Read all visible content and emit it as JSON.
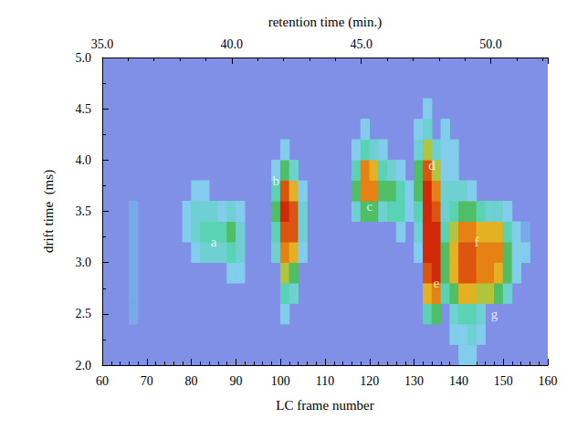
{
  "chart_data": {
    "type": "heatmap",
    "x_label": "LC frame number",
    "y_label": "drift time  (ms)",
    "x2_label": "retention time (min.)",
    "xlim": [
      60,
      160
    ],
    "xticks": [
      60,
      70,
      80,
      90,
      100,
      110,
      120,
      130,
      140,
      150,
      160
    ],
    "ylim": [
      2.0,
      5.0
    ],
    "yticks": [
      {
        "value": 2.0,
        "label": "2.0"
      },
      {
        "value": 2.5,
        "label": "2.5"
      },
      {
        "value": 3.0,
        "label": "3.0"
      },
      {
        "value": 3.5,
        "label": "3.5"
      },
      {
        "value": 4.0,
        "label": "4.0"
      },
      {
        "value": 4.5,
        "label": "4.5"
      },
      {
        "value": 5.0,
        "label": "5.0"
      }
    ],
    "x2lim": [
      35,
      52.2
    ],
    "x2ticks": [
      {
        "value": 35,
        "label": "35.0"
      },
      {
        "value": 40,
        "label": "40.0"
      },
      {
        "value": 45,
        "label": "45.0"
      },
      {
        "value": 50,
        "label": "50.0"
      }
    ],
    "zlim": [
      0,
      10
    ],
    "cell_size": [
      2,
      0.2
    ],
    "cells": [
      [
        67,
        2.5,
        1
      ],
      [
        67,
        2.7,
        1
      ],
      [
        67,
        2.9,
        1
      ],
      [
        67,
        3.1,
        1
      ],
      [
        67,
        3.3,
        1
      ],
      [
        67,
        3.5,
        1
      ],
      [
        79,
        3.3,
        2
      ],
      [
        79,
        3.5,
        2
      ],
      [
        81,
        3.1,
        2
      ],
      [
        81,
        3.3,
        3
      ],
      [
        81,
        3.5,
        3
      ],
      [
        81,
        3.7,
        2
      ],
      [
        83,
        3.1,
        3
      ],
      [
        83,
        3.3,
        4
      ],
      [
        83,
        3.5,
        3
      ],
      [
        83,
        3.7,
        2
      ],
      [
        85,
        3.1,
        3
      ],
      [
        85,
        3.3,
        4
      ],
      [
        85,
        3.5,
        3
      ],
      [
        87,
        3.1,
        3
      ],
      [
        87,
        3.3,
        4
      ],
      [
        87,
        3.5,
        2
      ],
      [
        89,
        2.9,
        2
      ],
      [
        89,
        3.1,
        4
      ],
      [
        89,
        3.3,
        5
      ],
      [
        89,
        3.5,
        3
      ],
      [
        91,
        2.9,
        2
      ],
      [
        91,
        3.1,
        3
      ],
      [
        91,
        3.3,
        3
      ],
      [
        91,
        3.5,
        2
      ],
      [
        99,
        3.1,
        3
      ],
      [
        99,
        3.3,
        4
      ],
      [
        99,
        3.5,
        5
      ],
      [
        99,
        3.7,
        4
      ],
      [
        99,
        3.9,
        2
      ],
      [
        101,
        2.5,
        2
      ],
      [
        101,
        2.7,
        4
      ],
      [
        101,
        2.9,
        6
      ],
      [
        101,
        3.1,
        8
      ],
      [
        101,
        3.3,
        9
      ],
      [
        101,
        3.5,
        10
      ],
      [
        101,
        3.7,
        9
      ],
      [
        101,
        3.9,
        5
      ],
      [
        101,
        4.1,
        2
      ],
      [
        103,
        2.7,
        3
      ],
      [
        103,
        2.9,
        5
      ],
      [
        103,
        3.1,
        7
      ],
      [
        103,
        3.3,
        9
      ],
      [
        103,
        3.5,
        9
      ],
      [
        103,
        3.7,
        7
      ],
      [
        103,
        3.9,
        3
      ],
      [
        105,
        3.1,
        2
      ],
      [
        105,
        3.3,
        3
      ],
      [
        105,
        3.5,
        3
      ],
      [
        105,
        3.7,
        2
      ],
      [
        117,
        3.5,
        3
      ],
      [
        117,
        3.7,
        5
      ],
      [
        117,
        3.9,
        4
      ],
      [
        117,
        4.1,
        2
      ],
      [
        119,
        3.5,
        5
      ],
      [
        119,
        3.7,
        8
      ],
      [
        119,
        3.9,
        8
      ],
      [
        119,
        4.1,
        4
      ],
      [
        119,
        4.3,
        2
      ],
      [
        121,
        3.5,
        5
      ],
      [
        121,
        3.7,
        8
      ],
      [
        121,
        3.9,
        7
      ],
      [
        121,
        4.1,
        3
      ],
      [
        123,
        3.5,
        3
      ],
      [
        123,
        3.7,
        5
      ],
      [
        123,
        3.9,
        4
      ],
      [
        123,
        4.1,
        2
      ],
      [
        125,
        3.5,
        4
      ],
      [
        125,
        3.7,
        5
      ],
      [
        125,
        3.9,
        3
      ],
      [
        127,
        3.3,
        2
      ],
      [
        127,
        3.5,
        4
      ],
      [
        127,
        3.7,
        4
      ],
      [
        127,
        3.9,
        2
      ],
      [
        129,
        3.5,
        2
      ],
      [
        129,
        3.7,
        2
      ],
      [
        131,
        3.1,
        2
      ],
      [
        131,
        3.3,
        3
      ],
      [
        131,
        3.5,
        4
      ],
      [
        131,
        3.7,
        5
      ],
      [
        131,
        3.9,
        5
      ],
      [
        131,
        4.1,
        3
      ],
      [
        131,
        4.3,
        2
      ],
      [
        133,
        2.5,
        4
      ],
      [
        133,
        2.7,
        7
      ],
      [
        133,
        2.9,
        9
      ],
      [
        133,
        3.1,
        10
      ],
      [
        133,
        3.3,
        10
      ],
      [
        133,
        3.5,
        10
      ],
      [
        133,
        3.7,
        10
      ],
      [
        133,
        3.9,
        9
      ],
      [
        133,
        4.1,
        6
      ],
      [
        133,
        4.3,
        3
      ],
      [
        133,
        4.5,
        2
      ],
      [
        135,
        2.5,
        5
      ],
      [
        135,
        2.7,
        8
      ],
      [
        135,
        2.9,
        10
      ],
      [
        135,
        3.1,
        10
      ],
      [
        135,
        3.3,
        10
      ],
      [
        135,
        3.5,
        9
      ],
      [
        135,
        3.7,
        8
      ],
      [
        135,
        3.9,
        6
      ],
      [
        135,
        4.1,
        3
      ],
      [
        137,
        2.7,
        4
      ],
      [
        137,
        2.9,
        5
      ],
      [
        137,
        3.1,
        5
      ],
      [
        137,
        3.3,
        4
      ],
      [
        137,
        3.5,
        3
      ],
      [
        137,
        3.7,
        3
      ],
      [
        137,
        3.9,
        2
      ],
      [
        137,
        4.1,
        2
      ],
      [
        137,
        4.3,
        2
      ],
      [
        139,
        2.3,
        2
      ],
      [
        139,
        2.5,
        3
      ],
      [
        139,
        2.7,
        5
      ],
      [
        139,
        2.9,
        7
      ],
      [
        139,
        3.1,
        7
      ],
      [
        139,
        3.3,
        6
      ],
      [
        139,
        3.5,
        4
      ],
      [
        139,
        3.7,
        3
      ],
      [
        139,
        3.9,
        2
      ],
      [
        139,
        4.1,
        2
      ],
      [
        141,
        2.1,
        2
      ],
      [
        141,
        2.3,
        2
      ],
      [
        141,
        2.5,
        4
      ],
      [
        141,
        2.7,
        7
      ],
      [
        141,
        2.9,
        9
      ],
      [
        141,
        3.1,
        9
      ],
      [
        141,
        3.3,
        8
      ],
      [
        141,
        3.5,
        5
      ],
      [
        141,
        3.7,
        3
      ],
      [
        143,
        2.1,
        2
      ],
      [
        143,
        2.3,
        3
      ],
      [
        143,
        2.5,
        4
      ],
      [
        143,
        2.7,
        7
      ],
      [
        143,
        2.9,
        9
      ],
      [
        143,
        3.1,
        9
      ],
      [
        143,
        3.3,
        8
      ],
      [
        143,
        3.5,
        5
      ],
      [
        143,
        3.7,
        2
      ],
      [
        145,
        2.3,
        2
      ],
      [
        145,
        2.5,
        3
      ],
      [
        145,
        2.7,
        6
      ],
      [
        145,
        2.9,
        8
      ],
      [
        145,
        3.1,
        8
      ],
      [
        145,
        3.3,
        7
      ],
      [
        145,
        3.5,
        4
      ],
      [
        147,
        2.7,
        6
      ],
      [
        147,
        2.9,
        8
      ],
      [
        147,
        3.1,
        8
      ],
      [
        147,
        3.3,
        7
      ],
      [
        147,
        3.5,
        3
      ],
      [
        149,
        2.7,
        5
      ],
      [
        149,
        2.9,
        7
      ],
      [
        149,
        3.1,
        8
      ],
      [
        149,
        3.3,
        7
      ],
      [
        149,
        3.5,
        3
      ],
      [
        151,
        2.7,
        3
      ],
      [
        151,
        2.9,
        5
      ],
      [
        151,
        3.1,
        5
      ],
      [
        151,
        3.3,
        4
      ],
      [
        151,
        3.5,
        2
      ],
      [
        153,
        2.9,
        2
      ],
      [
        153,
        3.1,
        2
      ],
      [
        153,
        3.3,
        2
      ],
      [
        155,
        3.1,
        2
      ],
      [
        155,
        3.3,
        1
      ]
    ],
    "annotations": [
      {
        "text": "a",
        "x": 85,
        "y": 3.2
      },
      {
        "text": "b",
        "x": 99,
        "y": 3.8
      },
      {
        "text": "c",
        "x": 120,
        "y": 3.55
      },
      {
        "text": "d",
        "x": 134,
        "y": 3.95
      },
      {
        "text": "e",
        "x": 135,
        "y": 2.8
      },
      {
        "text": "f",
        "x": 144,
        "y": 3.2
      },
      {
        "text": "g",
        "x": 148,
        "y": 2.5
      }
    ]
  }
}
